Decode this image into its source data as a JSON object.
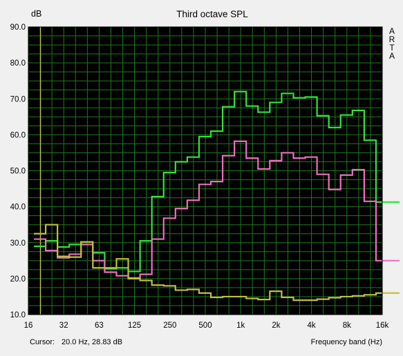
{
  "chart_data": {
    "type": "line",
    "title": "Third octave SPL",
    "ylabel": "dB",
    "xlabel": "Frequency band (Hz)",
    "brand": "ARTA",
    "cursor_label": "Cursor:",
    "cursor_value": "20.0 Hz, 28.83 dB",
    "ylim": [
      10,
      90
    ],
    "y_ticks": [
      "10.0",
      "20.0",
      "30.0",
      "40.0",
      "50.0",
      "60.0",
      "70.0",
      "80.0",
      "90.0"
    ],
    "x_tick_labels": [
      "16",
      "32",
      "63",
      "125",
      "250",
      "500",
      "1k",
      "2k",
      "4k",
      "8k",
      "16k"
    ],
    "bands": [
      "20",
      "25",
      "31.5",
      "40",
      "50",
      "63",
      "80",
      "100",
      "125",
      "160",
      "200",
      "250",
      "315",
      "400",
      "500",
      "630",
      "800",
      "1k",
      "1.25k",
      "1.6k",
      "2k",
      "2.5k",
      "3.15k",
      "4k",
      "5k",
      "6.3k",
      "8k",
      "10k",
      "12.5k",
      "16k",
      "20k"
    ],
    "cursor_band_index": 0,
    "grid": true,
    "colors": {
      "plot_bg": "#000000",
      "grid": "#1e7a1e",
      "cursor": "#c8c84a"
    },
    "series": [
      {
        "color": "#33e33a",
        "values": [
          29,
          30.5,
          28.8,
          29.5,
          30.2,
          27.2,
          22.8,
          23,
          22,
          30.5,
          42.8,
          49.5,
          52.5,
          53.8,
          59.5,
          61,
          67.8,
          72,
          68,
          66.3,
          69,
          71.5,
          70.3,
          70.5,
          65.3,
          62,
          65.5,
          66.8,
          58.5,
          41.3,
          41.3
        ]
      },
      {
        "color": "#ee6fc0",
        "values": [
          31,
          27.8,
          25.8,
          26.8,
          29.5,
          25,
          21.8,
          20.8,
          20.2,
          21.2,
          31,
          36.8,
          39.5,
          41.8,
          46.2,
          47,
          54.2,
          58.2,
          53.5,
          50.5,
          52.8,
          55,
          53.5,
          53.8,
          49,
          44.8,
          48.8,
          50.3,
          41.5,
          25,
          25
        ]
      },
      {
        "color": "#c2c03c",
        "values": [
          32.5,
          35,
          26.2,
          26,
          30.2,
          23,
          23,
          25.5,
          20,
          19.5,
          18.2,
          18,
          16.8,
          17,
          16,
          14.8,
          15,
          15,
          14.5,
          14.2,
          16.5,
          14.8,
          14,
          14,
          14.3,
          14.7,
          15,
          15.2,
          15.5,
          16,
          16
        ]
      }
    ]
  }
}
